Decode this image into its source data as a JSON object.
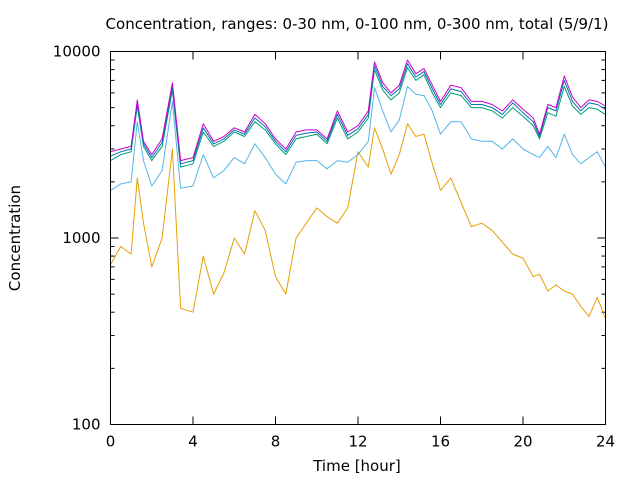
{
  "chart_data": {
    "type": "line",
    "title": "Concentration, ranges: 0-30 nm, 0-100 nm, 0-300 nm, total (5/9/1)",
    "xlabel": "Time [hour]",
    "ylabel": "Concentration",
    "xlim": [
      0,
      24
    ],
    "ylim": [
      100,
      10000
    ],
    "yscale": "log",
    "grid": false,
    "legend": "none",
    "x_ticks": [
      {
        "value": 0,
        "label": "0"
      },
      {
        "value": 4,
        "label": "4"
      },
      {
        "value": 8,
        "label": "8"
      },
      {
        "value": 12,
        "label": "12"
      },
      {
        "value": 16,
        "label": "16"
      },
      {
        "value": 20,
        "label": "20"
      },
      {
        "value": 24,
        "label": "24"
      }
    ],
    "y_ticks": [
      {
        "value": 100,
        "label": "100"
      },
      {
        "value": 1000,
        "label": "1000"
      },
      {
        "value": 10000,
        "label": "10000"
      }
    ],
    "x": [
      0,
      0.5,
      1,
      1.3,
      1.6,
      2,
      2.5,
      3,
      3.4,
      4,
      4.5,
      5,
      5.5,
      6,
      6.5,
      7,
      7.5,
      8,
      8.5,
      9,
      9.5,
      10,
      10.5,
      11,
      11.5,
      12,
      12.5,
      12.8,
      13.2,
      13.6,
      14,
      14.4,
      14.8,
      15.2,
      15.6,
      16,
      16.5,
      17,
      17.5,
      18,
      18.5,
      19,
      19.5,
      20,
      20.5,
      20.8,
      21.2,
      21.6,
      22,
      22.4,
      22.8,
      23.2,
      23.6,
      24
    ],
    "series": [
      {
        "color": "#e69f00",
        "values": [
          720,
          900,
          820,
          2100,
          1200,
          700,
          1000,
          3000,
          420,
          400,
          800,
          500,
          650,
          1000,
          820,
          1400,
          1100,
          620,
          500,
          1000,
          1200,
          1450,
          1300,
          1200,
          1450,
          2900,
          2400,
          3900,
          3000,
          2200,
          2800,
          4100,
          3500,
          3600,
          2500,
          1800,
          2100,
          1550,
          1150,
          1200,
          1100,
          950,
          820,
          780,
          620,
          640,
          520,
          560,
          520,
          500,
          430,
          380,
          480,
          370
        ]
      },
      {
        "color": "#56b4e9",
        "values": [
          1800,
          1950,
          2000,
          4200,
          2600,
          1900,
          2300,
          5400,
          1850,
          1900,
          2800,
          2100,
          2300,
          2700,
          2500,
          3200,
          2700,
          2200,
          1950,
          2550,
          2600,
          2600,
          2350,
          2600,
          2550,
          2800,
          3300,
          6400,
          4800,
          3700,
          4300,
          6500,
          5900,
          5800,
          4800,
          3600,
          4200,
          4200,
          3400,
          3300,
          3300,
          3000,
          3400,
          3000,
          2800,
          2700,
          3100,
          2700,
          3600,
          2800,
          2500,
          2700,
          2900,
          2400
        ]
      },
      {
        "color": "#009e73",
        "values": [
          2600,
          2800,
          2900,
          5100,
          3100,
          2600,
          3100,
          6200,
          2400,
          2500,
          3700,
          3100,
          3300,
          3700,
          3500,
          4200,
          3800,
          3200,
          2800,
          3400,
          3500,
          3600,
          3200,
          4400,
          3400,
          3700,
          4400,
          8000,
          6200,
          5500,
          6000,
          8200,
          7000,
          7500,
          6000,
          5000,
          6000,
          5800,
          5000,
          5000,
          4800,
          4400,
          5000,
          4500,
          4000,
          3400,
          4700,
          4500,
          6500,
          5100,
          4600,
          5000,
          4900,
          4600
        ]
      },
      {
        "color": "#0072b2",
        "values": [
          2750,
          2900,
          3000,
          5300,
          3200,
          2700,
          3250,
          6500,
          2500,
          2600,
          3900,
          3200,
          3400,
          3800,
          3600,
          4400,
          3950,
          3300,
          2900,
          3550,
          3650,
          3700,
          3300,
          4600,
          3550,
          3850,
          4600,
          8400,
          6500,
          5800,
          6300,
          8600,
          7300,
          7800,
          6300,
          5200,
          6300,
          6100,
          5200,
          5200,
          5000,
          4600,
          5300,
          4700,
          4200,
          3500,
          5000,
          4800,
          7000,
          5400,
          4800,
          5300,
          5200,
          4900
        ]
      },
      {
        "color": "#cc00cc",
        "values": [
          2900,
          3000,
          3100,
          5500,
          3300,
          2800,
          3400,
          6800,
          2600,
          2700,
          4100,
          3300,
          3500,
          3900,
          3700,
          4600,
          4100,
          3400,
          3000,
          3700,
          3800,
          3800,
          3400,
          4800,
          3700,
          4000,
          4800,
          8800,
          6800,
          6000,
          6600,
          9000,
          7600,
          8100,
          6600,
          5400,
          6600,
          6400,
          5400,
          5400,
          5200,
          4800,
          5500,
          4900,
          4400,
          3600,
          5200,
          5000,
          7400,
          5700,
          5000,
          5500,
          5400,
          5100
        ]
      }
    ]
  }
}
